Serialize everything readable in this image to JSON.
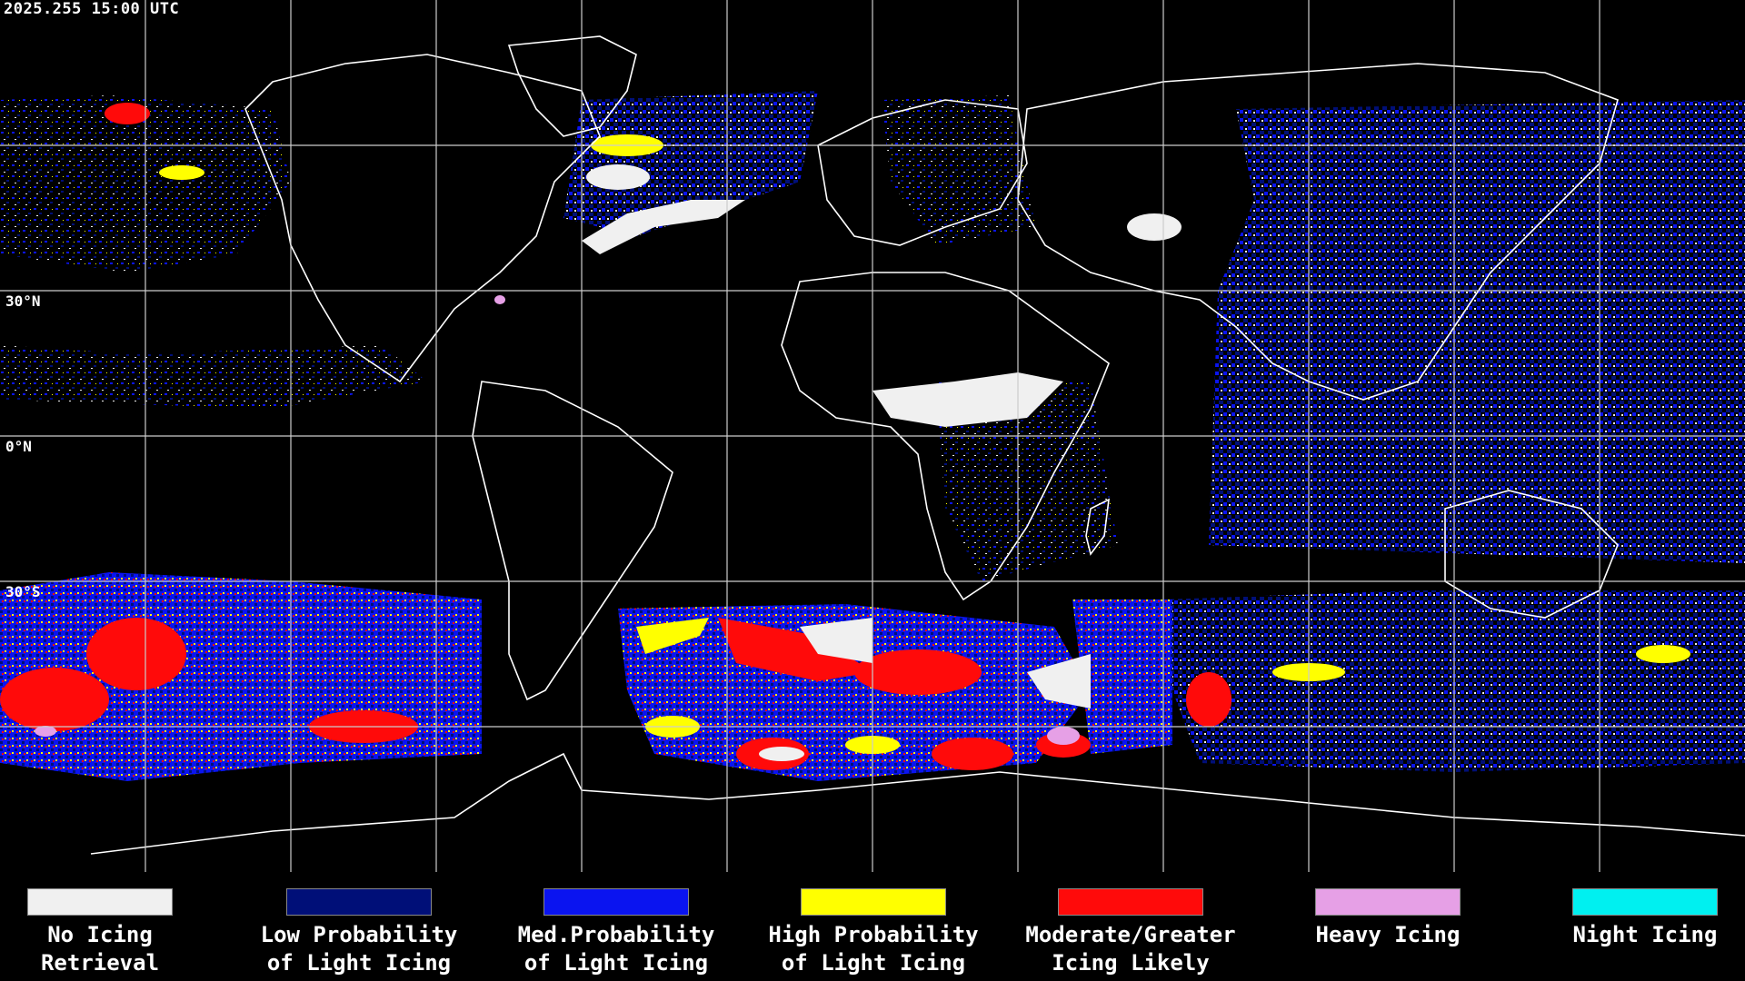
{
  "timestamp": "2025.255 15:00 UTC",
  "lat_labels": [
    "30°N",
    "0°N",
    "30°S"
  ],
  "colors": {
    "background": "#000000",
    "gridlines": "#cccccc",
    "coastlines": "#ffffff",
    "no_icing_retrieval": "#f0f0f0",
    "low_probability_light_icing": "#000f78",
    "med_probability_light_icing": "#0a14f0",
    "high_probability_light_icing": "#ffff00",
    "moderate_greater_icing_likely": "#ff0a0a",
    "heavy_icing": "#e6a0e6",
    "night_icing": "#00f0f0"
  },
  "legend": [
    {
      "line1": "No Icing",
      "line2": "Retrieval",
      "color": "#f0f0f0"
    },
    {
      "line1": "Low Probability",
      "line2": "of Light Icing",
      "color": "#000f78"
    },
    {
      "line1": "Med.Probability",
      "line2": "of Light Icing",
      "color": "#0a14f0"
    },
    {
      "line1": "High Probability",
      "line2": "of Light Icing",
      "color": "#ffff00"
    },
    {
      "line1": "Moderate/Greater",
      "line2": "Icing Likely",
      "color": "#ff0a0a"
    },
    {
      "line1": "Heavy Icing",
      "line2": "",
      "color": "#e6a0e6"
    },
    {
      "line1": "Night Icing",
      "line2": "",
      "color": "#00f0f0"
    }
  ]
}
